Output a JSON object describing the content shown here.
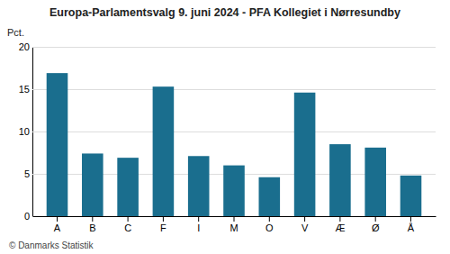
{
  "chart_data": {
    "type": "bar",
    "title": "Europa-Parlamentsvalg 9. juni 2024 - PFA Kollegiet i Nørresundby",
    "ylabel": "Pct.",
    "footer": "© Danmarks Statistik",
    "categories": [
      "A",
      "B",
      "C",
      "F",
      "I",
      "M",
      "O",
      "V",
      "Æ",
      "Ø",
      "Å"
    ],
    "values": [
      16.9,
      7.4,
      6.9,
      15.3,
      7.1,
      6.0,
      4.6,
      14.6,
      8.5,
      8.1,
      4.8
    ],
    "color": "#1a6e8e",
    "ylim": [
      0,
      20
    ],
    "yticks": [
      0,
      5,
      10,
      15,
      20
    ],
    "grid": true
  }
}
